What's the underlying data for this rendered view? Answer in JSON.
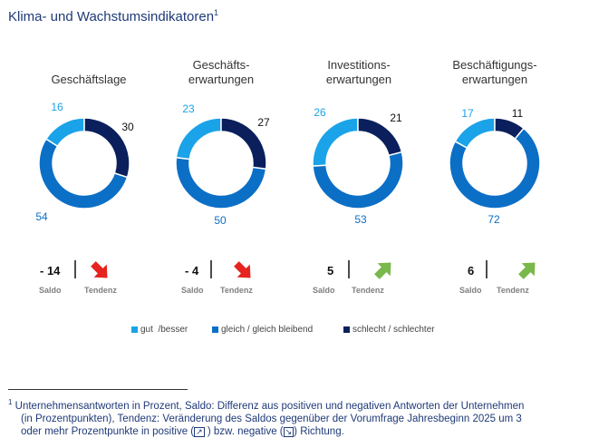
{
  "title": "Klima- und Wachstumsindikatoren",
  "title_sup": "1",
  "colors": {
    "gut": "#1aa3e8",
    "gleich": "#0b6fc6",
    "schlecht": "#0a1f5c",
    "arrow_down": "#e6231e",
    "arrow_up": "#79b84a"
  },
  "chart_data": {
    "type": "pie",
    "variant": "donut",
    "series_names": [
      "gut  /besser",
      "gleich / gleich bleibend",
      "schlecht / schlechter"
    ],
    "charts": [
      {
        "label": [
          "",
          "Geschäftslage"
        ],
        "values": [
          16,
          54,
          30
        ],
        "saldo": "- 14",
        "tendenz": "down"
      },
      {
        "label": [
          "Geschäfts-",
          "erwartungen"
        ],
        "values": [
          23,
          50,
          27
        ],
        "saldo": "- 4",
        "tendenz": "down"
      },
      {
        "label": [
          "Investitions-",
          "erwartungen"
        ],
        "values": [
          26,
          53,
          21
        ],
        "saldo": "5",
        "tendenz": "up"
      },
      {
        "label": [
          "Beschäftigungs-",
          "erwartungen"
        ],
        "values": [
          17,
          72,
          11
        ],
        "saldo": "6",
        "tendenz": "up"
      }
    ],
    "saldo_label": "Saldo",
    "tendenz_label": "Tendenz"
  },
  "footnote": {
    "marker": "1",
    "line1": "Unternehmensantworten in Prozent, Saldo: Differenz aus positiven und negativen Antworten der Unternehmen",
    "line2": "(in Prozentpunkten), Tendenz: Veränderung des Saldos gegenüber der Vorumfrage Jahresbeginn 2025 um 3",
    "line3_a": "oder mehr Prozentpunkte in positive (",
    "line3_b": " ) bzw. negative (",
    "line3_c": ") Richtung."
  }
}
